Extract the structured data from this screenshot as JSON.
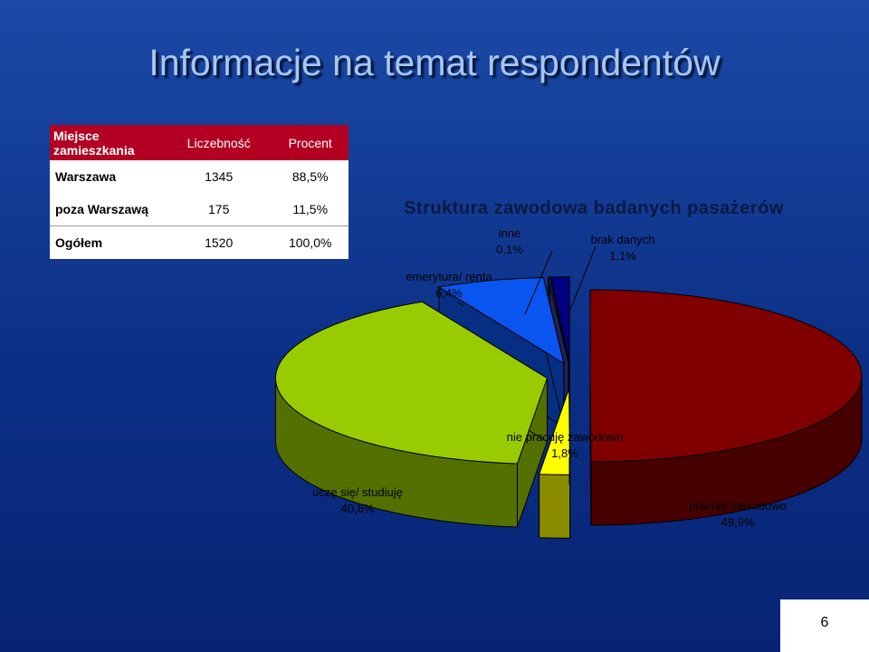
{
  "slide": {
    "title": "Informacje na temat respondentów",
    "page_number": "6"
  },
  "table": {
    "headers": [
      "Miejsce zamieszkania",
      "Liczebność",
      "Procent"
    ],
    "rows": [
      [
        "Warszawa",
        "1345",
        "88,5%"
      ],
      [
        "poza Warszawą",
        "175",
        "11,5%"
      ],
      [
        "Ogółem",
        "1520",
        "100,0%"
      ]
    ]
  },
  "chart_data": {
    "type": "pie",
    "title": "Struktura zawodowa badanych pasażerów",
    "slices": [
      {
        "label": "pracuję zawodowo",
        "value": 49.9,
        "value_label": "49,9%",
        "color": "#800000"
      },
      {
        "label": "nie pracuję zawodowo",
        "value": 1.8,
        "value_label": "1,8%",
        "color": "#ffff00"
      },
      {
        "label": "uczę się/ studiuję",
        "value": 40.6,
        "value_label": "40,6%",
        "color": "#99cc00"
      },
      {
        "label": "emerytura/ renta",
        "value": 6.4,
        "value_label": "6,4%",
        "color": "#0a55f0"
      },
      {
        "label": "inne",
        "value": 0.1,
        "value_label": "0,1%",
        "color": "#3b3b9a"
      },
      {
        "label": "brak danych",
        "value": 1.1,
        "value_label": "1,1%",
        "color": "#000080"
      }
    ],
    "style": "3d-exploded"
  }
}
